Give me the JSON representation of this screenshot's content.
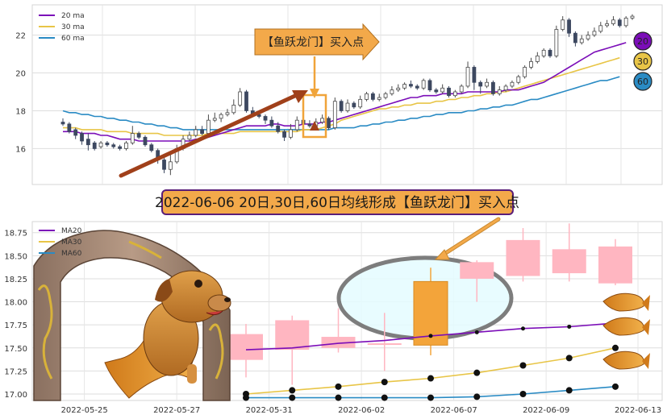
{
  "chart_data": [
    {
      "type": "candlestick",
      "panel": "top",
      "legend": [
        {
          "name": "20 ma",
          "color": "#7B0DB8"
        },
        {
          "name": "30 ma",
          "color": "#E8C547"
        },
        {
          "name": "60 ma",
          "color": "#2A8BC4"
        }
      ],
      "legend_position": "top-left",
      "ylim": [
        14.1,
        23.6
      ],
      "yticks": [
        "16",
        "18",
        "20",
        "22"
      ],
      "grid": true,
      "candles": [
        [
          17.4,
          17.3,
          17.6,
          17.2
        ],
        [
          17.3,
          16.9,
          17.4,
          16.8
        ],
        [
          17.0,
          16.7,
          17.1,
          16.5
        ],
        [
          16.8,
          16.4,
          16.9,
          16.2
        ],
        [
          16.5,
          16.2,
          16.8,
          15.9
        ],
        [
          16.3,
          16.0,
          16.4,
          15.9
        ],
        [
          16.1,
          16.3,
          16.4,
          16.0
        ],
        [
          16.3,
          16.2,
          16.4,
          16.1
        ],
        [
          16.2,
          16.1,
          16.3,
          16.0
        ],
        [
          16.1,
          16.0,
          16.2,
          15.9
        ],
        [
          16.0,
          16.3,
          16.4,
          15.9
        ],
        [
          16.3,
          16.8,
          17.2,
          16.2
        ],
        [
          16.8,
          16.6,
          16.9,
          16.5
        ],
        [
          16.6,
          16.2,
          16.7,
          16.1
        ],
        [
          16.2,
          15.9,
          16.3,
          15.8
        ],
        [
          15.9,
          15.4,
          16.0,
          15.2
        ],
        [
          15.4,
          14.9,
          15.6,
          14.7
        ],
        [
          14.9,
          15.3,
          15.7,
          14.6
        ],
        [
          15.3,
          16.0,
          16.2,
          15.2
        ],
        [
          16.0,
          16.5,
          16.7,
          15.9
        ],
        [
          16.5,
          16.7,
          16.9,
          16.4
        ],
        [
          16.7,
          17.0,
          17.2,
          16.6
        ],
        [
          17.0,
          16.8,
          17.2,
          16.7
        ],
        [
          16.8,
          17.5,
          17.8,
          16.7
        ],
        [
          17.5,
          17.6,
          17.9,
          17.4
        ],
        [
          17.6,
          17.8,
          17.9,
          17.4
        ],
        [
          17.8,
          17.9,
          18.1,
          17.7
        ],
        [
          17.9,
          18.3,
          18.6,
          17.8
        ],
        [
          18.3,
          19.0,
          19.2,
          18.2
        ],
        [
          19.0,
          18.0,
          19.1,
          17.9
        ],
        [
          18.0,
          17.8,
          18.2,
          17.7
        ],
        [
          17.8,
          17.7,
          17.9,
          17.6
        ],
        [
          17.7,
          17.5,
          17.8,
          17.3
        ],
        [
          17.5,
          17.2,
          17.7,
          17.1
        ],
        [
          17.2,
          16.9,
          17.4,
          16.8
        ],
        [
          16.9,
          16.6,
          17.0,
          16.4
        ],
        [
          16.6,
          17.0,
          17.3,
          16.5
        ],
        [
          17.0,
          17.5,
          17.7,
          16.9
        ],
        [
          17.5,
          17.3,
          17.6,
          17.2
        ],
        [
          17.3,
          17.2,
          17.5,
          17.1
        ],
        [
          17.2,
          17.4,
          17.6,
          17.1
        ],
        [
          17.4,
          17.6,
          17.8,
          17.3
        ],
        [
          17.6,
          17.1,
          17.7,
          17.0
        ],
        [
          17.1,
          18.5,
          18.7,
          17.0
        ],
        [
          18.5,
          18.0,
          18.6,
          17.9
        ],
        [
          18.0,
          18.4,
          18.6,
          17.9
        ],
        [
          18.4,
          18.2,
          18.5,
          18.1
        ],
        [
          18.2,
          18.6,
          18.8,
          18.1
        ],
        [
          18.6,
          18.9,
          19.0,
          18.5
        ],
        [
          18.9,
          18.6,
          19.0,
          18.5
        ],
        [
          18.6,
          18.7,
          18.9,
          18.5
        ],
        [
          18.7,
          18.9,
          19.0,
          18.6
        ],
        [
          18.9,
          19.1,
          19.3,
          18.8
        ],
        [
          19.1,
          19.2,
          19.4,
          19.0
        ],
        [
          19.2,
          19.4,
          19.5,
          19.1
        ],
        [
          19.4,
          19.3,
          19.6,
          19.2
        ],
        [
          19.3,
          19.2,
          19.4,
          19.1
        ],
        [
          19.2,
          19.6,
          19.7,
          19.1
        ],
        [
          19.6,
          19.1,
          19.7,
          19.0
        ],
        [
          19.1,
          19.0,
          19.2,
          18.9
        ],
        [
          19.0,
          19.2,
          19.4,
          18.9
        ],
        [
          19.2,
          18.8,
          19.3,
          18.7
        ],
        [
          18.8,
          19.0,
          19.1,
          18.7
        ],
        [
          19.0,
          19.3,
          19.4,
          18.9
        ],
        [
          19.3,
          20.3,
          20.6,
          19.2
        ],
        [
          20.3,
          19.5,
          20.4,
          19.1
        ],
        [
          19.5,
          19.3,
          19.6,
          18.9
        ],
        [
          19.3,
          19.5,
          19.7,
          19.2
        ],
        [
          19.5,
          18.9,
          19.6,
          18.8
        ],
        [
          18.9,
          19.1,
          19.3,
          18.8
        ],
        [
          19.1,
          19.3,
          19.4,
          19.0
        ],
        [
          19.3,
          19.5,
          19.6,
          19.2
        ],
        [
          19.5,
          19.8,
          19.9,
          19.4
        ],
        [
          19.8,
          20.3,
          20.4,
          19.7
        ],
        [
          20.3,
          20.6,
          20.8,
          20.2
        ],
        [
          20.6,
          20.9,
          21.1,
          20.5
        ],
        [
          20.9,
          21.2,
          21.3,
          20.8
        ],
        [
          21.2,
          20.9,
          21.3,
          20.8
        ],
        [
          20.9,
          22.3,
          22.5,
          20.8
        ],
        [
          22.3,
          22.8,
          23.0,
          22.2
        ],
        [
          22.8,
          22.1,
          22.9,
          21.9
        ],
        [
          22.1,
          21.6,
          22.2,
          21.4
        ],
        [
          21.6,
          21.8,
          22.0,
          21.5
        ],
        [
          21.8,
          22.0,
          22.2,
          21.7
        ],
        [
          22.0,
          22.2,
          22.4,
          21.9
        ],
        [
          22.2,
          22.5,
          22.7,
          22.1
        ],
        [
          22.5,
          22.6,
          22.8,
          22.4
        ],
        [
          22.6,
          22.8,
          23.0,
          22.5
        ],
        [
          22.8,
          22.5,
          22.9,
          22.4
        ],
        [
          22.5,
          22.9,
          23.0,
          22.4
        ],
        [
          22.9,
          23.0,
          23.1,
          22.8
        ]
      ],
      "ma20": [
        16.9,
        16.9,
        16.9,
        16.8,
        16.8,
        16.8,
        16.7,
        16.7,
        16.6,
        16.5,
        16.5,
        16.5,
        16.4,
        16.4,
        16.4,
        16.4,
        16.4,
        16.4,
        16.4,
        16.4,
        16.4,
        16.5,
        16.5,
        16.6,
        16.7,
        16.8,
        16.9,
        17.0,
        17.1,
        17.2,
        17.2,
        17.2,
        17.2,
        17.3,
        17.3,
        17.2,
        17.2,
        17.2,
        17.3,
        17.3,
        17.3,
        17.4,
        17.4,
        17.5,
        17.6,
        17.7,
        17.8,
        17.9,
        18.0,
        18.1,
        18.2,
        18.3,
        18.4,
        18.5,
        18.6,
        18.7,
        18.7,
        18.8,
        18.8,
        18.8,
        18.9,
        18.9,
        18.9,
        18.9,
        19.0,
        19.0,
        19.0,
        19.0,
        19.0,
        19.0,
        19.1,
        19.1,
        19.1,
        19.2,
        19.3,
        19.4,
        19.5,
        19.7,
        19.9,
        20.1,
        20.3,
        20.5,
        20.7,
        20.9,
        21.1,
        21.2,
        21.3,
        21.4,
        21.5,
        21.6
      ],
      "ma30": [
        17.1,
        17.1,
        17.1,
        17.0,
        17.0,
        17.0,
        17.0,
        16.9,
        16.9,
        16.9,
        16.9,
        16.8,
        16.8,
        16.8,
        16.8,
        16.8,
        16.7,
        16.7,
        16.7,
        16.7,
        16.7,
        16.7,
        16.7,
        16.8,
        16.8,
        16.8,
        16.8,
        16.8,
        16.9,
        16.9,
        16.9,
        16.9,
        16.9,
        16.9,
        16.9,
        16.9,
        16.9,
        16.9,
        17.0,
        17.0,
        17.0,
        17.1,
        17.2,
        17.3,
        17.5,
        17.6,
        17.7,
        17.8,
        17.9,
        18.0,
        18.1,
        18.1,
        18.2,
        18.2,
        18.3,
        18.3,
        18.4,
        18.4,
        18.4,
        18.5,
        18.5,
        18.6,
        18.6,
        18.7,
        18.7,
        18.8,
        18.8,
        18.9,
        18.9,
        19.0,
        19.0,
        19.1,
        19.2,
        19.3,
        19.4,
        19.5,
        19.6,
        19.7,
        19.8,
        19.9,
        20.0,
        20.1,
        20.2,
        20.3,
        20.4,
        20.5,
        20.6,
        20.7,
        20.8
      ],
      "ma60": [
        18.0,
        17.9,
        17.9,
        17.8,
        17.8,
        17.7,
        17.7,
        17.6,
        17.6,
        17.5,
        17.5,
        17.4,
        17.4,
        17.3,
        17.3,
        17.2,
        17.2,
        17.1,
        17.1,
        17.0,
        17.0,
        17.0,
        17.0,
        17.0,
        17.0,
        17.0,
        17.0,
        17.0,
        17.0,
        17.0,
        17.0,
        17.0,
        17.0,
        17.0,
        17.0,
        17.0,
        17.0,
        17.0,
        17.0,
        17.0,
        17.0,
        17.0,
        17.0,
        17.1,
        17.1,
        17.1,
        17.1,
        17.2,
        17.2,
        17.3,
        17.3,
        17.4,
        17.4,
        17.5,
        17.5,
        17.6,
        17.6,
        17.7,
        17.7,
        17.8,
        17.8,
        17.9,
        17.9,
        17.9,
        18.0,
        18.0,
        18.1,
        18.1,
        18.2,
        18.2,
        18.3,
        18.3,
        18.4,
        18.5,
        18.6,
        18.6,
        18.7,
        18.8,
        18.9,
        19.0,
        19.1,
        19.2,
        19.3,
        19.4,
        19.5,
        19.6,
        19.6,
        19.7,
        19.8
      ],
      "end_labels": [
        "20",
        "30",
        "60"
      ],
      "banner": "【鱼跃龙门】买入点"
    },
    {
      "type": "candlestick",
      "panel": "bottom",
      "title": "2022-06-06 20日,30日,60日均线形成【鱼跃龙门】买入点",
      "legend": [
        {
          "name": "MA20",
          "color": "#7B0DB8"
        },
        {
          "name": "MA30",
          "color": "#E8C547"
        },
        {
          "name": "MA60",
          "color": "#2A8BC4"
        }
      ],
      "legend_position": "top-left",
      "ylim": [
        16.93,
        18.87
      ],
      "yticks": [
        "17.00",
        "17.25",
        "17.50",
        "17.75",
        "18.00",
        "18.25",
        "18.50",
        "18.75"
      ],
      "xticks": [
        "2022-05-25",
        "2022-05-27",
        "2022-05-31",
        "2022-06-02",
        "2022-06-07",
        "2022-06-09",
        "2022-06-13"
      ],
      "grid": true,
      "candles": [
        [
          null,
          null,
          null,
          null
        ],
        [
          null,
          null,
          null,
          null
        ],
        [
          null,
          null,
          null,
          null
        ],
        [
          null,
          null,
          null,
          null
        ],
        [
          17.37,
          17.65,
          17.76,
          17.18
        ],
        [
          17.48,
          17.8,
          17.85,
          17.1
        ],
        [
          17.5,
          17.62,
          17.93,
          17.45
        ],
        [
          17.55,
          17.55,
          17.88,
          17.25
        ],
        [
          17.53,
          18.22,
          18.37,
          17.42
        ],
        [
          18.25,
          18.43,
          18.45,
          18.0
        ],
        [
          18.28,
          18.67,
          18.8,
          18.22
        ],
        [
          18.31,
          18.57,
          18.85,
          18.22
        ],
        [
          18.2,
          18.6,
          18.68,
          18.18
        ]
      ],
      "ma20": [
        null,
        null,
        null,
        null,
        17.48,
        17.5,
        17.55,
        17.58,
        17.63,
        17.67,
        17.71,
        17.73,
        17.77
      ],
      "ma30": [
        null,
        null,
        null,
        null,
        17.0,
        17.04,
        17.08,
        17.13,
        17.17,
        17.23,
        17.31,
        17.39,
        17.5
      ],
      "ma60": [
        null,
        null,
        null,
        null,
        16.96,
        16.96,
        16.96,
        16.96,
        16.96,
        16.97,
        17.0,
        17.04,
        17.08
      ]
    }
  ]
}
